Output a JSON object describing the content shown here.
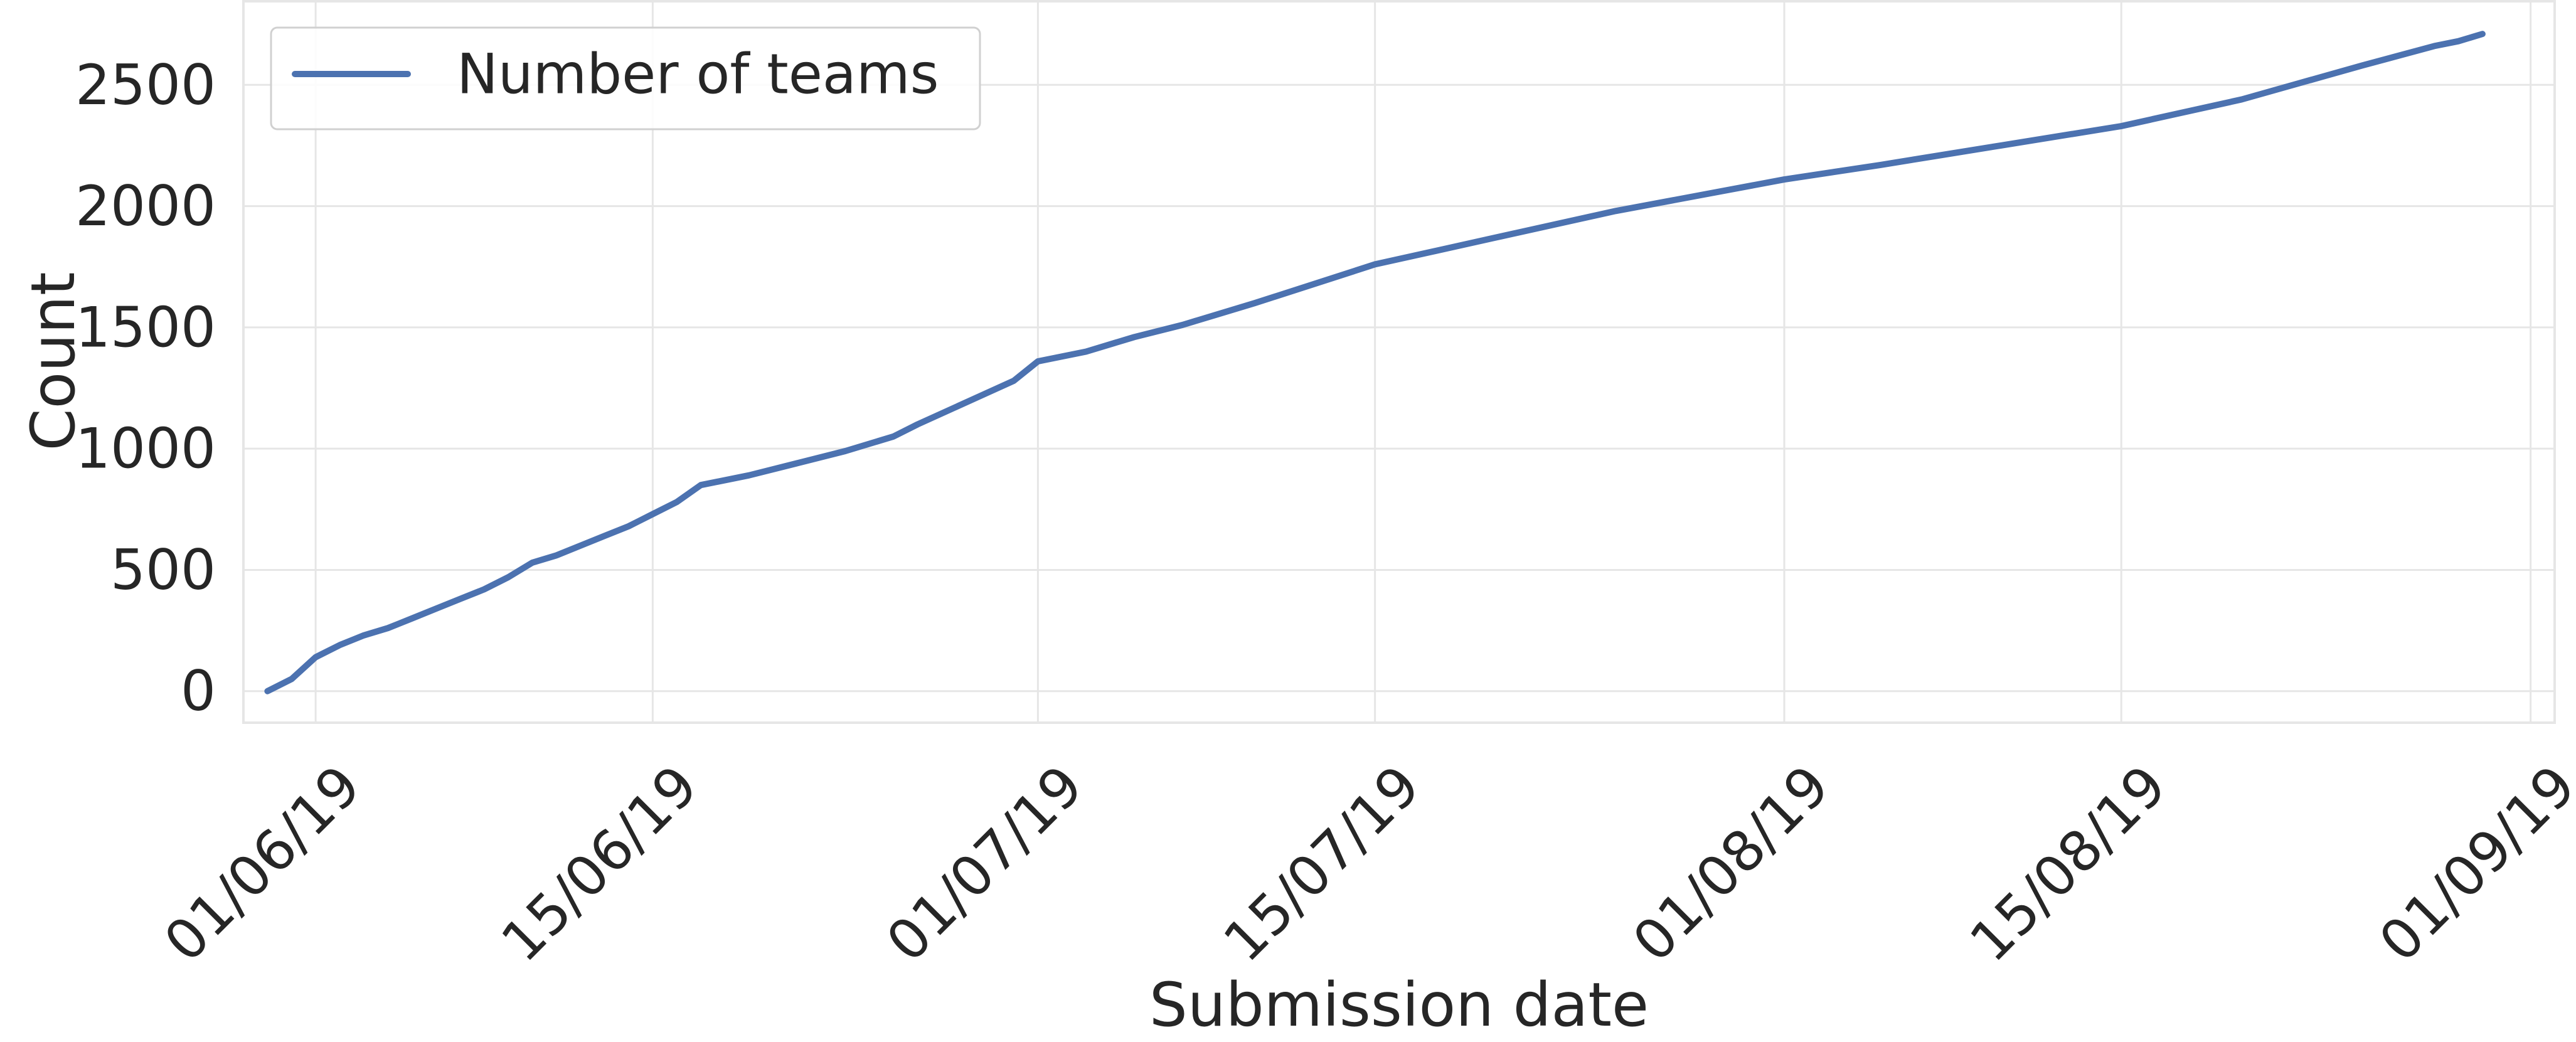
{
  "chart_data": {
    "type": "line",
    "xlabel": "Submission date",
    "ylabel": "Count",
    "x_type": "date",
    "x_tick_labels": [
      "01/06/19",
      "15/06/19",
      "01/07/19",
      "15/07/19",
      "01/08/19",
      "15/08/19",
      "01/09/19"
    ],
    "x_tick_dates": [
      "2019-06-01",
      "2019-06-15",
      "2019-07-01",
      "2019-07-15",
      "2019-08-01",
      "2019-08-15",
      "2019-09-01"
    ],
    "xlim": [
      "2019-05-29",
      "2019-09-02"
    ],
    "y_ticks": [
      0,
      500,
      1000,
      1500,
      2000,
      2500
    ],
    "ylim": [
      -130,
      2850
    ],
    "grid": true,
    "legend_position": "top-left",
    "colors": {
      "series": "#4c72b0",
      "grid": "#e6e6e6",
      "frame": "#e6e6e6",
      "text": "#262626"
    },
    "series": [
      {
        "name": "Number of teams",
        "points": [
          [
            "2019-05-30",
            0
          ],
          [
            "2019-05-31",
            50
          ],
          [
            "2019-06-01",
            140
          ],
          [
            "2019-06-02",
            190
          ],
          [
            "2019-06-03",
            230
          ],
          [
            "2019-06-04",
            260
          ],
          [
            "2019-06-05",
            300
          ],
          [
            "2019-06-06",
            340
          ],
          [
            "2019-06-07",
            380
          ],
          [
            "2019-06-08",
            420
          ],
          [
            "2019-06-09",
            470
          ],
          [
            "2019-06-10",
            530
          ],
          [
            "2019-06-11",
            560
          ],
          [
            "2019-06-12",
            600
          ],
          [
            "2019-06-13",
            640
          ],
          [
            "2019-06-14",
            680
          ],
          [
            "2019-06-15",
            730
          ],
          [
            "2019-06-16",
            780
          ],
          [
            "2019-06-17",
            850
          ],
          [
            "2019-06-19",
            890
          ],
          [
            "2019-06-21",
            940
          ],
          [
            "2019-06-23",
            990
          ],
          [
            "2019-06-25",
            1050
          ],
          [
            "2019-06-26",
            1100
          ],
          [
            "2019-06-28",
            1190
          ],
          [
            "2019-06-30",
            1280
          ],
          [
            "2019-07-01",
            1360
          ],
          [
            "2019-07-03",
            1400
          ],
          [
            "2019-07-05",
            1460
          ],
          [
            "2019-07-07",
            1510
          ],
          [
            "2019-07-10",
            1600
          ],
          [
            "2019-07-15",
            1760
          ],
          [
            "2019-07-20",
            1870
          ],
          [
            "2019-07-25",
            1980
          ],
          [
            "2019-08-01",
            2110
          ],
          [
            "2019-08-05",
            2170
          ],
          [
            "2019-08-10",
            2250
          ],
          [
            "2019-08-15",
            2330
          ],
          [
            "2019-08-20",
            2440
          ],
          [
            "2019-08-25",
            2580
          ],
          [
            "2019-08-28",
            2660
          ],
          [
            "2019-08-29",
            2680
          ],
          [
            "2019-08-30",
            2710
          ]
        ]
      }
    ]
  }
}
